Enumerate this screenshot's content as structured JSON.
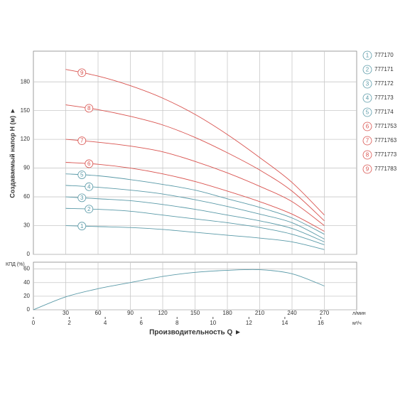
{
  "chart_data": [
    {
      "type": "line",
      "ylabel": "Создаваемый напор H (м) ►",
      "x": [
        30,
        60,
        90,
        120,
        150,
        180,
        210,
        240,
        270
      ],
      "xlim": [
        0,
        300
      ],
      "ylim": [
        0,
        212
      ],
      "yticks": [
        0,
        30,
        60,
        90,
        120,
        150,
        180
      ],
      "grid": true,
      "legend": "right",
      "series": [
        {
          "name": "777170",
          "label": "1",
          "color": "#5a9aa8",
          "values": [
            30,
            29,
            28,
            26,
            23,
            20,
            17,
            13,
            5
          ]
        },
        {
          "name": "777171",
          "label": "2",
          "color": "#5a9aa8",
          "values": [
            48,
            47,
            45,
            41,
            37,
            33,
            28,
            21,
            10
          ]
        },
        {
          "name": "777172",
          "label": "3",
          "color": "#5a9aa8",
          "values": [
            60,
            58,
            56,
            52,
            47,
            41,
            35,
            27,
            13
          ]
        },
        {
          "name": "777173",
          "label": "4",
          "color": "#5a9aa8",
          "values": [
            72,
            70,
            67,
            63,
            57,
            50,
            42,
            33,
            16
          ]
        },
        {
          "name": "777174",
          "label": "5",
          "color": "#5a9aa8",
          "values": [
            84,
            82,
            78,
            73,
            67,
            58,
            49,
            38,
            21
          ]
        },
        {
          "name": "7771753",
          "label": "6",
          "color": "#d9534f",
          "values": [
            96,
            94,
            90,
            84,
            76,
            66,
            55,
            42,
            24
          ]
        },
        {
          "name": "7771763",
          "label": "7",
          "color": "#d9534f",
          "values": [
            120,
            117,
            113,
            107,
            97,
            85,
            71,
            55,
            30
          ]
        },
        {
          "name": "7771773",
          "label": "8",
          "color": "#d9534f",
          "values": [
            156,
            151,
            144,
            135,
            122,
            106,
            88,
            66,
            35
          ]
        },
        {
          "name": "7771783",
          "label": "9",
          "color": "#d9534f",
          "values": [
            193,
            186,
            176,
            163,
            146,
            125,
            101,
            75,
            41
          ]
        }
      ]
    },
    {
      "type": "line",
      "ylabel": "КПД (%)",
      "xlabel": "Производительность Q ►",
      "x_unit": "л/мин",
      "x2_unit": "м³/ч",
      "x": [
        0,
        30,
        60,
        90,
        120,
        150,
        180,
        210,
        240,
        270
      ],
      "values": [
        0,
        19,
        31,
        40,
        49,
        55,
        58,
        59,
        53,
        35
      ],
      "color": "#5a9aa8",
      "xlim": [
        0,
        300
      ],
      "xticks": [
        30,
        60,
        90,
        120,
        150,
        180,
        210,
        240,
        270
      ],
      "x2lim": [
        0,
        18
      ],
      "x2ticks": [
        0,
        2,
        4,
        6,
        8,
        10,
        12,
        14,
        16
      ],
      "ylim": [
        0,
        70
      ],
      "yticks": [
        0,
        20,
        40,
        60
      ],
      "grid": true
    }
  ]
}
